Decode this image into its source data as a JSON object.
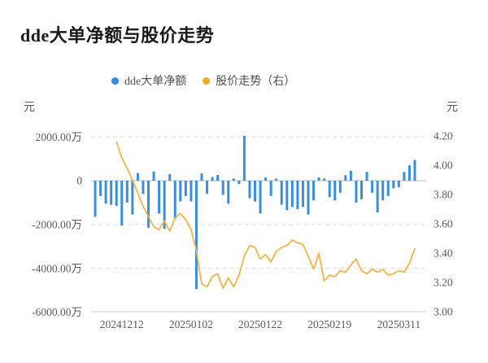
{
  "title": "dde大单净额与股价走势",
  "legend": {
    "items": [
      {
        "label": "dde大单净额",
        "color": "#2f8ce4"
      },
      {
        "label": "股价走势（右）",
        "color": "#f5a823"
      }
    ]
  },
  "left_axis": {
    "unit": "元",
    "ticks": [
      "2000.00万",
      "0",
      "-2000.00万",
      "-4000.00万",
      "-6000.00万"
    ]
  },
  "right_axis": {
    "unit": "元",
    "ticks": [
      "4.20",
      "4.00",
      "3.80",
      "3.60",
      "3.40",
      "3.20",
      "3.00"
    ]
  },
  "x_axis": {
    "ticks": [
      "20241212",
      "20250102",
      "20250122",
      "20250219",
      "20250311"
    ]
  },
  "colors": {
    "bar": "#3a8fdd",
    "line": "#f0b449",
    "grid_dashed": "#dcdcdc",
    "zero_line": "#b8b8b8",
    "bottom_line": "#cccccc",
    "tick_text": "#5a5a5a"
  },
  "chart_data": {
    "type": "bar",
    "subtype": "combo bar+line, dual y-axis",
    "title": "dde大单净额与股价走势",
    "x_tick_labels": [
      "20241212",
      "20250102",
      "20250122",
      "20250219",
      "20250311"
    ],
    "x_tick_indices": [
      5,
      18,
      31,
      44,
      57
    ],
    "left_ylabel": "元",
    "right_ylabel": "元",
    "left_ylim_wan": [
      -6000,
      2000
    ],
    "right_ylim": [
      3.0,
      4.2
    ],
    "left_ticks_wan": [
      2000,
      0,
      -2000,
      -4000,
      -6000
    ],
    "right_ticks": [
      4.2,
      4.0,
      3.8,
      3.6,
      3.4,
      3.2,
      3.0
    ],
    "grid": "horizontal dashed",
    "legend_position": "top center",
    "series": [
      {
        "name": "dde大单净额",
        "type": "bar",
        "axis": "left",
        "unit": "万元",
        "color": "#3a8fdd",
        "values": [
          -1650,
          -700,
          -1050,
          -1100,
          -1150,
          -2050,
          -1000,
          -1550,
          350,
          -600,
          -2150,
          420,
          -1500,
          -2200,
          300,
          -1750,
          -950,
          -700,
          -950,
          -4950,
          330,
          -600,
          170,
          260,
          -650,
          -1050,
          100,
          -150,
          2050,
          -800,
          -950,
          -1500,
          150,
          -700,
          100,
          -1100,
          -1350,
          -1200,
          -1300,
          -1200,
          -1550,
          -900,
          150,
          100,
          -750,
          -900,
          -550,
          250,
          450,
          -1000,
          -850,
          400,
          -550,
          -1450,
          -900,
          -700,
          -350,
          -300,
          400,
          700,
          950
        ]
      },
      {
        "name": "股价走势（右）",
        "type": "line",
        "axis": "right",
        "unit": "元",
        "color": "#f0b449",
        "values": [
          null,
          null,
          null,
          null,
          4.16,
          4.05,
          3.98,
          3.9,
          3.81,
          3.72,
          3.65,
          3.58,
          3.56,
          3.62,
          3.55,
          3.64,
          3.67,
          3.63,
          3.56,
          3.42,
          3.19,
          3.17,
          3.24,
          3.26,
          3.16,
          3.23,
          3.17,
          3.25,
          3.38,
          3.45,
          3.44,
          3.36,
          3.39,
          3.34,
          3.41,
          3.44,
          3.45,
          3.49,
          3.47,
          3.46,
          3.38,
          3.29,
          3.4,
          3.21,
          3.25,
          3.24,
          3.28,
          3.27,
          3.32,
          3.36,
          3.28,
          3.26,
          3.29,
          3.27,
          3.29,
          3.25,
          3.26,
          3.28,
          3.27,
          3.33,
          3.43
        ]
      }
    ]
  }
}
